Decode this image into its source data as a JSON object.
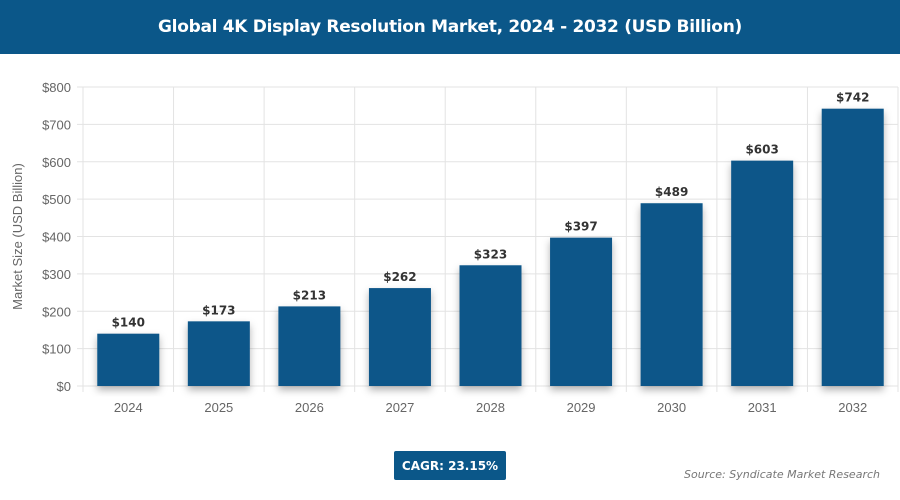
{
  "chart_data": {
    "type": "bar",
    "title": "Global 4K Display Resolution Market, 2024 - 2032 (USD Billion)",
    "ylabel": "Market Size (USD Billion)",
    "xlabel": "",
    "categories": [
      "2024",
      "2025",
      "2026",
      "2027",
      "2028",
      "2029",
      "2030",
      "2031",
      "2032"
    ],
    "values": [
      140,
      173,
      213,
      262,
      323,
      397,
      489,
      603,
      742
    ],
    "data_labels": [
      "$140",
      "$173",
      "$213",
      "$262",
      "$323",
      "$397",
      "$489",
      "$603",
      "$742"
    ],
    "ylim": [
      0,
      800
    ],
    "yticks": [
      0,
      100,
      200,
      300,
      400,
      500,
      600,
      700,
      800
    ],
    "ytick_labels": [
      "$0",
      "$100",
      "$200",
      "$300",
      "$400",
      "$500",
      "$600",
      "$700",
      "$800"
    ],
    "grid": true,
    "bar_color": "#0b5789"
  },
  "footer": {
    "cagr": "CAGR: 23.15%",
    "source": "Source: Syndicate Market Research"
  }
}
